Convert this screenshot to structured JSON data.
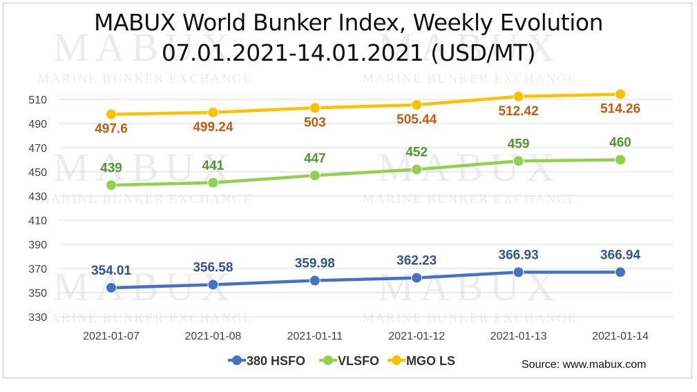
{
  "chart_data": {
    "type": "line",
    "title": "MABUX World Bunker Index, Weekly Evolution",
    "subtitle": "07.01.2021-14.01.2021 (USD/MT)",
    "categories": [
      "2021-01-07",
      "2021-01-08",
      "2021-01-11",
      "2021-01-12",
      "2021-01-13",
      "2021-01-14"
    ],
    "series": [
      {
        "name": "380 HSFO",
        "color": "#4472c4",
        "label_color": "#2f5597",
        "values": [
          354.01,
          356.58,
          359.98,
          362.23,
          366.93,
          366.94
        ],
        "labels": [
          "354.01",
          "356.58",
          "359.98",
          "362.23",
          "366.93",
          "366.94"
        ]
      },
      {
        "name": "VLSFO",
        "color": "#92d050",
        "label_color": "#4e9a2e",
        "values": [
          439,
          441,
          447,
          452,
          459,
          460
        ],
        "labels": [
          "439",
          "441",
          "447",
          "452",
          "459",
          "460"
        ]
      },
      {
        "name": "MGO LS",
        "color": "#ffc000",
        "label_color": "#c55a11",
        "values": [
          497.6,
          499.24,
          503,
          505.44,
          512.42,
          514.26
        ],
        "labels": [
          "497.6",
          "499.24",
          "503",
          "505.44",
          "512.42",
          "514.26"
        ]
      }
    ],
    "y_ticks": [
      "330",
      "350",
      "370",
      "390",
      "410",
      "430",
      "450",
      "470",
      "490",
      "510"
    ],
    "ylim": [
      330,
      520
    ],
    "grid": true,
    "legend_position": "bottom"
  },
  "source": "Source: www.mabux.com",
  "watermark": {
    "word": "MABUX",
    "tagline": "MARINE BUNKER EXCHANGE"
  },
  "colors": {
    "grid": "#d9d9d9",
    "tick_text": "#404040"
  }
}
